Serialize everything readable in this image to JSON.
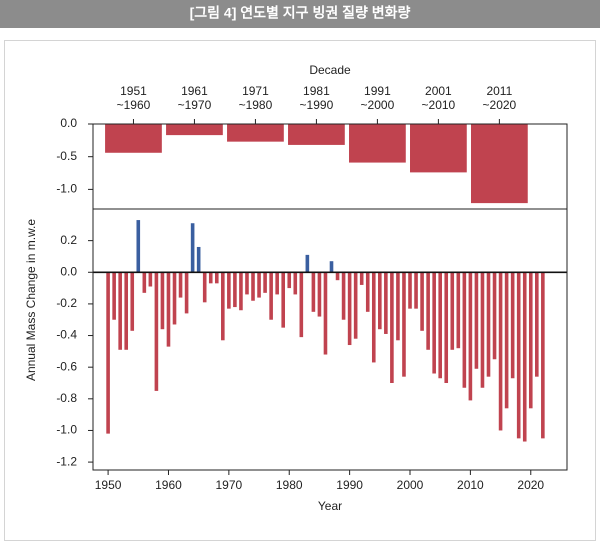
{
  "header": {
    "title": "[그림 4] 연도별 지구 빙권 질량 변화량"
  },
  "chart_data": [
    {
      "type": "bar",
      "x_label": "Decade",
      "categories": [
        [
          "1951",
          "~1960"
        ],
        [
          "1961",
          "~1970"
        ],
        [
          "1971",
          "~1980"
        ],
        [
          "1981",
          "~1990"
        ],
        [
          "1991",
          "~2000"
        ],
        [
          "2001",
          "~2010"
        ],
        [
          "2011",
          "~2020"
        ]
      ],
      "values": [
        -0.44,
        -0.17,
        -0.27,
        -0.32,
        -0.59,
        -0.74,
        -1.21
      ],
      "color": "#c0434f",
      "ylim": [
        -1.3,
        0
      ],
      "yticks": [
        {
          "value": 0,
          "label": "0.0"
        },
        -0.5,
        {
          "value": -1,
          "label": "-1.0"
        }
      ]
    },
    {
      "type": "bar",
      "x_label": "Year",
      "y_label": "Annual Mass Change in m.w.e",
      "x": [
        1950,
        1951,
        1952,
        1953,
        1954,
        1955,
        1956,
        1957,
        1958,
        1959,
        1960,
        1961,
        1962,
        1963,
        1964,
        1965,
        1966,
        1967,
        1968,
        1969,
        1970,
        1971,
        1972,
        1973,
        1974,
        1975,
        1976,
        1977,
        1978,
        1979,
        1980,
        1981,
        1982,
        1983,
        1984,
        1985,
        1986,
        1987,
        1988,
        1989,
        1990,
        1991,
        1992,
        1993,
        1994,
        1995,
        1996,
        1997,
        1998,
        1999,
        2000,
        2001,
        2002,
        2003,
        2004,
        2005,
        2006,
        2007,
        2008,
        2009,
        2010,
        2011,
        2012,
        2013,
        2014,
        2015,
        2016,
        2017,
        2018,
        2019,
        2020,
        2021,
        2022
      ],
      "values": [
        -1.02,
        -0.3,
        -0.49,
        -0.49,
        -0.37,
        0.33,
        -0.13,
        -0.09,
        -0.75,
        -0.36,
        -0.47,
        -0.33,
        -0.16,
        -0.26,
        0.31,
        0.16,
        -0.19,
        -0.07,
        -0.07,
        -0.43,
        -0.23,
        -0.22,
        -0.24,
        -0.14,
        -0.18,
        -0.16,
        -0.13,
        -0.3,
        -0.14,
        -0.35,
        -0.1,
        -0.14,
        -0.41,
        0.11,
        -0.25,
        -0.28,
        -0.52,
        0.07,
        -0.05,
        -0.3,
        -0.46,
        -0.42,
        -0.08,
        -0.25,
        -0.57,
        -0.36,
        -0.39,
        -0.7,
        -0.43,
        -0.66,
        -0.23,
        -0.23,
        -0.37,
        -0.49,
        -0.64,
        -0.67,
        -0.7,
        -0.49,
        -0.48,
        -0.73,
        -0.81,
        -0.61,
        -0.73,
        -0.66,
        -0.55,
        -1.0,
        -0.86,
        -0.67,
        -1.05,
        -1.07,
        -0.86,
        -0.66,
        -1.05
      ],
      "color": "#c0434f",
      "positive_color": "#3a5fa0",
      "xlim": [
        1947.5,
        2026
      ],
      "xticks": [
        1950,
        1960,
        1970,
        1980,
        1990,
        2000,
        2010,
        2020
      ],
      "ylim": [
        -1.25,
        0.4
      ],
      "yticks": [
        0.2,
        {
          "value": 0,
          "label": "0.0"
        },
        -0.2,
        -0.4,
        -0.6,
        -0.8,
        {
          "value": -1,
          "label": "-1.0"
        },
        -1.2
      ]
    }
  ]
}
